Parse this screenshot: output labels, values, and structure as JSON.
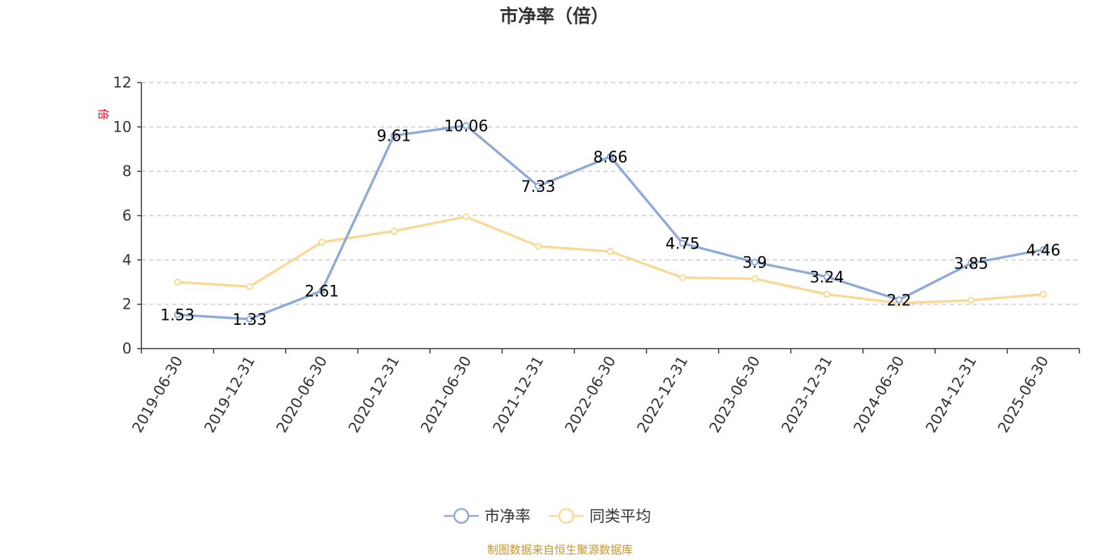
{
  "chart_data": {
    "type": "line",
    "title": "市净率（倍）",
    "ylabel": "倍",
    "xlabel": "",
    "ylim": [
      0,
      12
    ],
    "yticks": [
      0,
      2,
      4,
      6,
      8,
      10,
      12
    ],
    "grid": true,
    "legend_position": "bottom-center",
    "categories": [
      "2019-06-30",
      "2019-12-31",
      "2020-06-30",
      "2020-12-31",
      "2021-06-30",
      "2021-12-31",
      "2022-06-30",
      "2022-12-31",
      "2023-06-30",
      "2023-12-31",
      "2024-06-30",
      "2024-12-31",
      "2025-06-30"
    ],
    "series": [
      {
        "name": "市净率",
        "color": "#8eaad8",
        "values": [
          1.53,
          1.33,
          2.61,
          9.61,
          10.06,
          7.33,
          8.66,
          4.75,
          3.9,
          3.24,
          2.2,
          3.85,
          4.46
        ],
        "data_labels": [
          "1.53",
          "1.33",
          "2.61",
          "9.61",
          "10.06",
          "7.33",
          "8.66",
          "4.75",
          "3.9",
          "3.24",
          "2.2",
          "3.85",
          "4.46"
        ]
      },
      {
        "name": "同类平均",
        "color": "#fbd896",
        "values": [
          3.0,
          2.8,
          4.8,
          5.3,
          5.95,
          4.62,
          4.38,
          3.2,
          3.15,
          2.45,
          2.05,
          2.18,
          2.45
        ]
      }
    ],
    "source": "制图数据来自恒生聚源数据库"
  }
}
